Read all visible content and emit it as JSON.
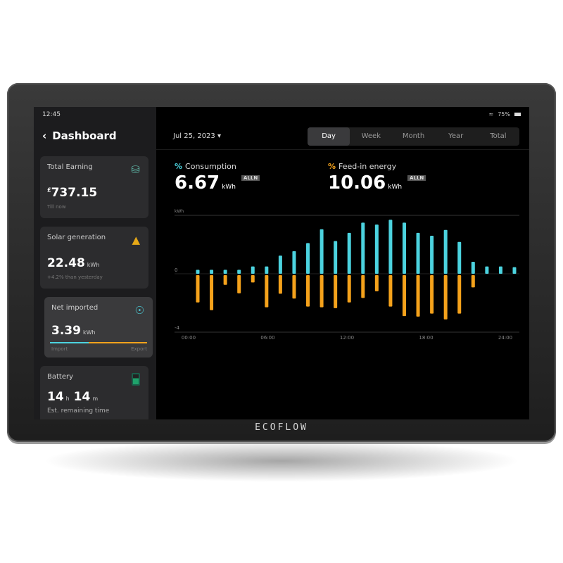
{
  "brand": "ECOFLOW",
  "status": {
    "time": "12:45",
    "battery": "75%",
    "wifi_icon": "wifi-icon",
    "battery_icon": "battery-icon"
  },
  "sidebar": {
    "title": "Dashboard",
    "cards": [
      {
        "title": "Total Earning",
        "value": "737.15",
        "currency": "£",
        "sub": "Till now",
        "icon": "coins-icon",
        "icon_color": "#5fb8a8"
      },
      {
        "title": "Solar generation",
        "value": "22.48",
        "unit": "kWh",
        "sub": "+4.2% than yesterday",
        "icon": "solar-icon",
        "icon_color": "#e6a817"
      },
      {
        "title": "Net imported",
        "value": "3.39",
        "unit": "kWh",
        "import_label": "Import",
        "export_label": "Export",
        "import_fraction": 0.4,
        "icon": "grid-icon",
        "icon_color": "#4cd3df"
      },
      {
        "title": "Battery",
        "value_h": "14",
        "value_m": "14",
        "unit_h": "h",
        "unit_m": "m",
        "sub": "Est. remaining time",
        "icon": "battery-icon",
        "icon_color": "#1fa36b"
      }
    ]
  },
  "header": {
    "date": "Jul 25, 2023",
    "tabs": [
      "Day",
      "Week",
      "Month",
      "Year",
      "Total"
    ],
    "active_tab": "Day"
  },
  "metrics": [
    {
      "label": "Consumption",
      "value": "6.67",
      "unit": "kWh",
      "badge": "ALLN",
      "color": "#4cd3df"
    },
    {
      "label": "Feed-in energy",
      "value": "10.06",
      "unit": "kWh",
      "badge": "ALLN",
      "color": "#f5a21b"
    }
  ],
  "chart_data": {
    "type": "bar",
    "ylabel": "kWh",
    "ylim": [
      -4,
      4
    ],
    "yticks": [
      "0",
      "-4"
    ],
    "xticks": [
      "00:00",
      "06:00",
      "12:00",
      "18:00",
      "24:00"
    ],
    "grid": false,
    "series": [
      {
        "color": "#4cd3df",
        "values": [
          0.27,
          0.27,
          0.27,
          0.27,
          0.5,
          0.5,
          1.24,
          1.55,
          2.1,
          3.05,
          2.24,
          2.8,
          3.5,
          3.37,
          3.7,
          3.5,
          2.8,
          2.6,
          3.0,
          2.18,
          0.82,
          0.5,
          0.5,
          0.45
        ]
      },
      {
        "color": "#f5a21b",
        "values": [
          -1.87,
          -2.4,
          -0.66,
          -1.24,
          -0.5,
          -2.2,
          -1.27,
          -1.6,
          -2.15,
          -2.2,
          -2.26,
          -1.87,
          -1.56,
          -1.1,
          -2.15,
          -2.8,
          -2.84,
          -2.63,
          -3.03,
          -2.63,
          -0.84,
          0,
          0,
          0
        ]
      }
    ]
  }
}
